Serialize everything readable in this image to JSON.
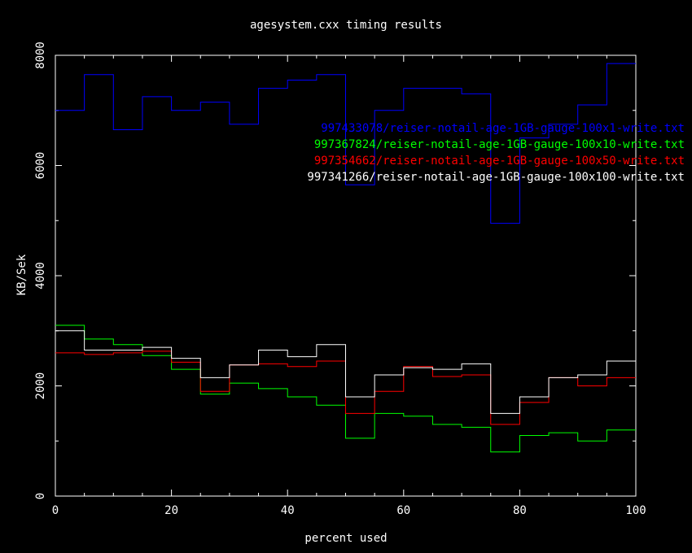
{
  "chart_data": {
    "type": "line",
    "style": "step",
    "title": "agesystem.cxx timing results",
    "xlabel": "percent used",
    "ylabel": "KB/Sek",
    "xlim": [
      0,
      100
    ],
    "ylim": [
      0,
      8000
    ],
    "x_ticks": [
      "0",
      "20",
      "40",
      "60",
      "80",
      "100"
    ],
    "y_ticks": [
      "0",
      "2000",
      "4000",
      "6000",
      "8000"
    ],
    "grid": false,
    "legend_position": "top-right",
    "x_bins": [
      0,
      5,
      10,
      15,
      20,
      25,
      30,
      35,
      40,
      45,
      50,
      55,
      60,
      65,
      70,
      75,
      80,
      85,
      90,
      95,
      100
    ],
    "series": [
      {
        "name": "997433078/reiser-notail-age-1GB-gauge-100x1-write.txt",
        "color": "#0000ff",
        "values": [
          7000,
          7650,
          6650,
          7250,
          7000,
          7150,
          6750,
          7400,
          7550,
          7650,
          5650,
          7000,
          7400,
          7400,
          7300,
          4950,
          6500,
          6750,
          7100,
          7850
        ]
      },
      {
        "name": "997367824/reiser-notail-age-1GB-gauge-100x10-write.txt",
        "color": "#00ff00",
        "values": [
          3100,
          2850,
          2750,
          2550,
          2300,
          1850,
          2050,
          1950,
          1800,
          1650,
          1050,
          1500,
          1450,
          1300,
          1250,
          800,
          1100,
          1150,
          1000,
          1200
        ]
      },
      {
        "name": "997354662/reiser-notail-age-1GB-gauge-100x50-write.txt",
        "color": "#ff0000",
        "values": [
          2600,
          2570,
          2600,
          2630,
          2430,
          1900,
          2380,
          2400,
          2350,
          2450,
          1500,
          1900,
          2350,
          2170,
          2200,
          1300,
          1700,
          2150,
          2000,
          2150
        ]
      },
      {
        "name": "997341266/reiser-notail-age-1GB-gauge-100x100-write.txt",
        "color": "#ffffff",
        "values": [
          3000,
          2650,
          2650,
          2700,
          2500,
          2150,
          2380,
          2650,
          2530,
          2750,
          1800,
          2200,
          2330,
          2300,
          2400,
          1500,
          1800,
          2150,
          2200,
          2450
        ]
      }
    ]
  }
}
